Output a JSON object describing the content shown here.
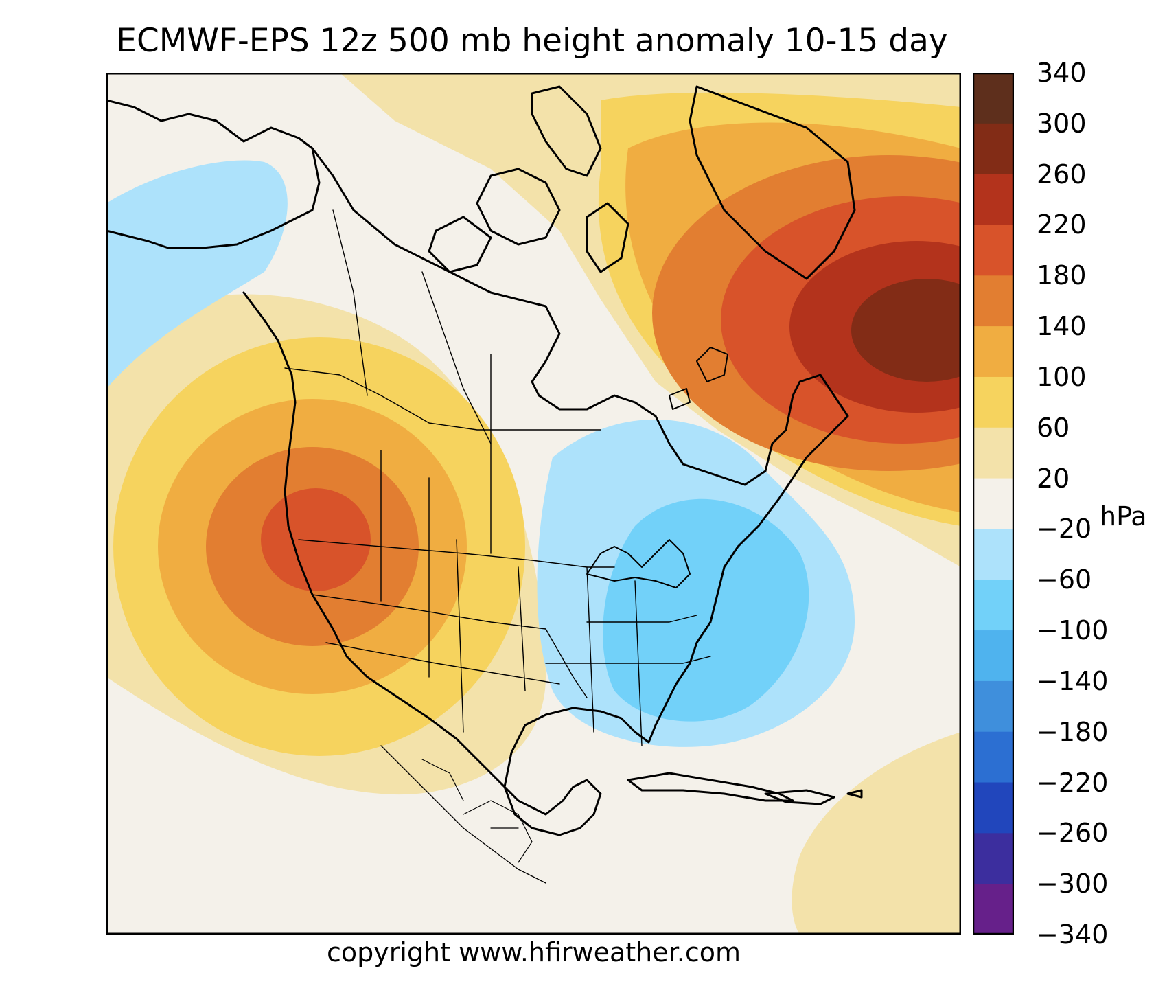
{
  "title": "ECMWF-EPS 12z 500 mb height anomaly 10-15 day",
  "credit": "copyright www.hfirweather.com",
  "colorbar": {
    "unit": "hPa",
    "tick_labels": [
      "340",
      "300",
      "260",
      "220",
      "180",
      "140",
      "100",
      "60",
      "20",
      "−20",
      "−60",
      "−100",
      "−140",
      "−180",
      "−220",
      "−260",
      "−300",
      "−340"
    ],
    "bands": [
      {
        "range": [
          300,
          340
        ],
        "color": "#5e2f1c"
      },
      {
        "range": [
          260,
          300
        ],
        "color": "#822c16"
      },
      {
        "range": [
          220,
          260
        ],
        "color": "#b3331c"
      },
      {
        "range": [
          180,
          220
        ],
        "color": "#d8532a"
      },
      {
        "range": [
          140,
          180
        ],
        "color": "#e27e31"
      },
      {
        "range": [
          100,
          140
        ],
        "color": "#f0ad41"
      },
      {
        "range": [
          60,
          100
        ],
        "color": "#f6d35e"
      },
      {
        "range": [
          20,
          60
        ],
        "color": "#f3e2aa"
      },
      {
        "range": [
          -20,
          20
        ],
        "color": "#f4f1ea"
      },
      {
        "range": [
          -60,
          -20
        ],
        "color": "#ade2fb"
      },
      {
        "range": [
          -100,
          -60
        ],
        "color": "#72d1f9"
      },
      {
        "range": [
          -140,
          -100
        ],
        "color": "#4fb3ee"
      },
      {
        "range": [
          -180,
          -140
        ],
        "color": "#3f8fdc"
      },
      {
        "range": [
          -220,
          -180
        ],
        "color": "#2c6fd2"
      },
      {
        "range": [
          -260,
          -220
        ],
        "color": "#2146bc"
      },
      {
        "range": [
          -300,
          -260
        ],
        "color": "#3c2e9e"
      },
      {
        "range": [
          -340,
          -300
        ],
        "color": "#66208a"
      }
    ]
  },
  "anomaly_centers": [
    {
      "region": "Greenland",
      "sign": "positive"
    },
    {
      "region": "Pacific Northwest",
      "sign": "positive"
    },
    {
      "region": "Eastern United States",
      "sign": "negative"
    },
    {
      "region": "Alaska / Bering Sea",
      "sign": "negative"
    }
  ]
}
